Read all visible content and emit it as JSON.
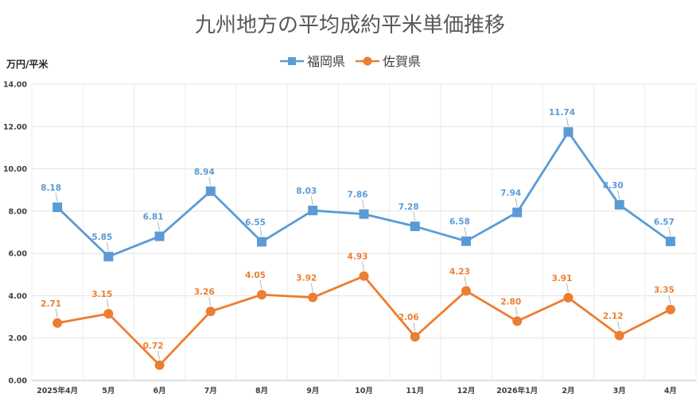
{
  "chart_data": {
    "type": "line",
    "title": "九州地方の平均成約平米単価推移",
    "ylabel": "万円/平米",
    "xlabel": "",
    "categories": [
      "2025年4月",
      "5月",
      "6月",
      "7月",
      "8月",
      "9月",
      "10月",
      "11月",
      "12月",
      "2026年1月",
      "2月",
      "3月",
      "4月"
    ],
    "ylim": [
      0,
      14
    ],
    "yticks": [
      "0.00",
      "2.00",
      "4.00",
      "6.00",
      "8.00",
      "10.00",
      "12.00",
      "14.00"
    ],
    "grid": true,
    "legend_position": "top-center",
    "series": [
      {
        "name": "福岡県",
        "color": "#5B9BD5",
        "marker": "square",
        "values": [
          8.18,
          5.85,
          6.81,
          8.94,
          6.55,
          8.03,
          7.86,
          7.28,
          6.58,
          7.94,
          11.74,
          8.3,
          6.57
        ],
        "labels": [
          "8.18",
          "5.85",
          "6.81",
          "8.94",
          "6.55",
          "8.03",
          "7.86",
          "7.28",
          "6.58",
          "7.94",
          "11.74",
          "8.30",
          "6.57"
        ]
      },
      {
        "name": "佐賀県",
        "color": "#ED7D31",
        "marker": "circle",
        "values": [
          2.71,
          3.15,
          0.72,
          3.26,
          4.05,
          3.92,
          4.93,
          2.06,
          4.23,
          2.8,
          3.91,
          2.12,
          3.35
        ],
        "labels": [
          "2.71",
          "3.15",
          "0.72",
          "3.26",
          "4.05",
          "3.92",
          "4.93",
          "2.06",
          "4.23",
          "2.80",
          "3.91",
          "2.12",
          "3.35"
        ]
      }
    ]
  }
}
